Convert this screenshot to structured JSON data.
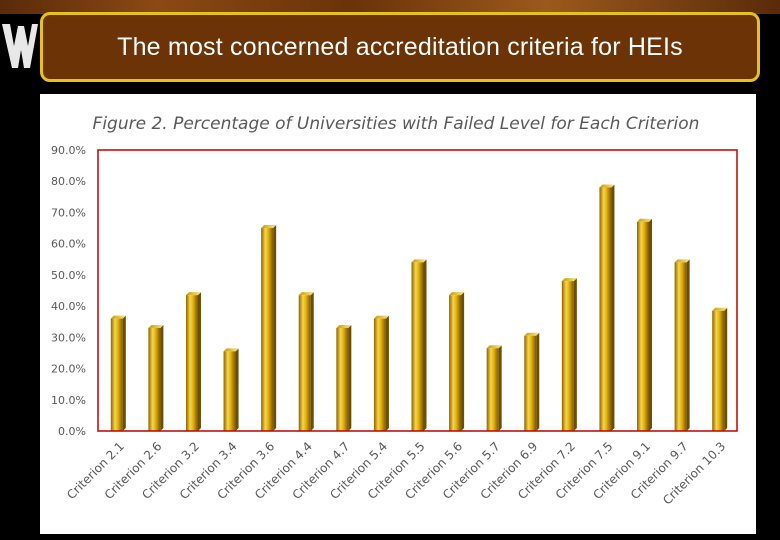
{
  "slide": {
    "title": "The most concerned accreditation criteria for HEIs"
  },
  "colors": {
    "title_bg": "#6b3306",
    "title_border": "#e6c21a",
    "bar_fill": "#e0b10c",
    "plot_border": "#c00000",
    "text_gray": "#595959"
  },
  "chart_data": {
    "type": "bar",
    "title": "Figure 2. Percentage of Universities with Failed Level for Each Criterion",
    "categories": [
      "Criterion 2.1",
      "Criterion 2.6",
      "Criterion 3.2",
      "Criterion 3.4",
      "Criterion 3.6",
      "Criterion 4.4",
      "Criterion 4.7",
      "Criterion 5.4",
      "Criterion 5.5",
      "Criterion 5.6",
      "Criterion 5.7",
      "Criterion 6.9",
      "Criterion 7.2",
      "Criterion 7.5",
      "Criterion 9.1",
      "Criterion 9.7",
      "Criterion 10.3"
    ],
    "values": [
      36,
      33,
      43.5,
      25.5,
      65,
      43.5,
      33,
      36,
      54,
      43.5,
      26.5,
      30.5,
      48,
      78,
      67,
      54,
      38.5
    ],
    "yticks": [
      "0.0%",
      "10.0%",
      "20.0%",
      "30.0%",
      "40.0%",
      "50.0%",
      "60.0%",
      "70.0%",
      "80.0%",
      "90.0%"
    ],
    "ylim": [
      0,
      90
    ],
    "xlabel": "",
    "ylabel": "",
    "grid": false,
    "legend": "none"
  }
}
